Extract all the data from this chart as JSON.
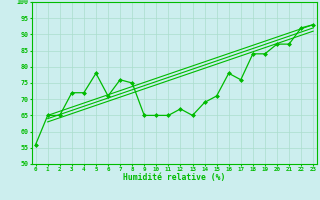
{
  "x": [
    0,
    1,
    2,
    3,
    4,
    5,
    6,
    7,
    8,
    9,
    10,
    11,
    12,
    13,
    14,
    15,
    16,
    17,
    18,
    19,
    20,
    21,
    22,
    23
  ],
  "main_line": [
    56,
    65,
    65,
    72,
    72,
    78,
    71,
    76,
    75,
    65,
    65,
    65,
    67,
    65,
    69,
    71,
    78,
    76,
    84,
    84,
    87,
    87,
    92,
    93
  ],
  "reg_lines": [
    [
      1,
      65,
      23,
      93
    ],
    [
      1,
      64,
      23,
      92
    ],
    [
      1,
      63,
      23,
      91
    ]
  ],
  "line_color": "#00bb00",
  "bg_color": "#cceeee",
  "grid_color": "#aaddcc",
  "xlabel": "Humidité relative (%)",
  "ylim": [
    50,
    100
  ],
  "xlim": [
    0,
    23
  ],
  "yticks": [
    50,
    55,
    60,
    65,
    70,
    75,
    80,
    85,
    90,
    95,
    100
  ]
}
